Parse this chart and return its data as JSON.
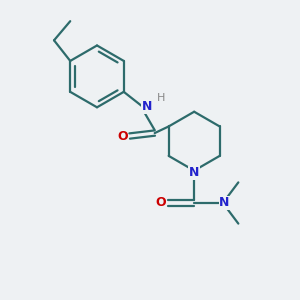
{
  "background_color": "#eef1f3",
  "bond_color": "#2d6b6b",
  "nitrogen_color": "#2222cc",
  "oxygen_color": "#cc0000",
  "h_color": "#888888",
  "line_width": 1.6,
  "figsize": [
    3.0,
    3.0
  ],
  "dpi": 100,
  "xlim": [
    0,
    10
  ],
  "ylim": [
    0,
    10
  ]
}
